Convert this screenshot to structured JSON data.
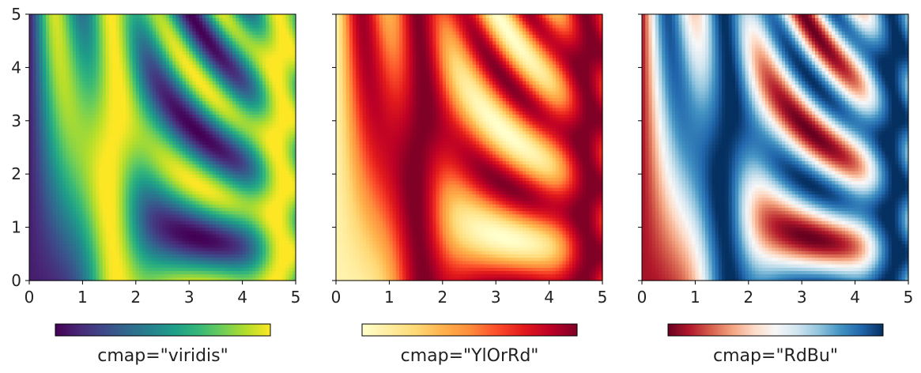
{
  "chart_data": [
    {
      "type": "heatmap",
      "function": "sin(x)^10 + cos(10 + x*y) * cos(x)",
      "x_range": [
        0,
        5
      ],
      "y_range": [
        0,
        5
      ],
      "grid_resolution": 80,
      "xticks": [
        0,
        1,
        2,
        3,
        4,
        5
      ],
      "yticks": [
        0,
        1,
        2,
        3,
        4,
        5
      ],
      "show_yticklabels": true,
      "colormap": "viridis",
      "colormap_stops": [
        "#440154",
        "#482878",
        "#3e4989",
        "#31688e",
        "#26828e",
        "#1f9e89",
        "#35b779",
        "#6ece58",
        "#b5de2b",
        "#fde725"
      ],
      "colorbar_label": "cmap=\"viridis\"",
      "vmin": -1.0,
      "vmax": 1.0
    },
    {
      "type": "heatmap",
      "function": "sin(x)^10 + cos(10 + x*y) * cos(x)",
      "x_range": [
        0,
        5
      ],
      "y_range": [
        0,
        5
      ],
      "grid_resolution": 80,
      "xticks": [
        0,
        1,
        2,
        3,
        4,
        5
      ],
      "yticks": [
        0,
        1,
        2,
        3,
        4,
        5
      ],
      "show_yticklabels": false,
      "colormap": "YlOrRd",
      "colormap_stops": [
        "#ffffcc",
        "#ffeda0",
        "#fed976",
        "#feb24c",
        "#fd8d3c",
        "#fc4e2a",
        "#e31a1c",
        "#bd0026",
        "#800026"
      ],
      "colorbar_label": "cmap=\"YlOrRd\"",
      "vmin": -1.0,
      "vmax": 1.0
    },
    {
      "type": "heatmap",
      "function": "sin(x)^10 + cos(10 + x*y) * cos(x)",
      "x_range": [
        0,
        5
      ],
      "y_range": [
        0,
        5
      ],
      "grid_resolution": 80,
      "xticks": [
        0,
        1,
        2,
        3,
        4,
        5
      ],
      "yticks": [
        0,
        1,
        2,
        3,
        4,
        5
      ],
      "show_yticklabels": false,
      "colormap": "RdBu",
      "colormap_stops": [
        "#67001f",
        "#b2182b",
        "#d6604d",
        "#f4a582",
        "#fddbc7",
        "#f7f7f7",
        "#d1e5f0",
        "#92c5de",
        "#4393c3",
        "#2166ac",
        "#053061"
      ],
      "colorbar_label": "cmap=\"RdBu\"",
      "vmin": -1.0,
      "vmax": 1.0
    }
  ]
}
